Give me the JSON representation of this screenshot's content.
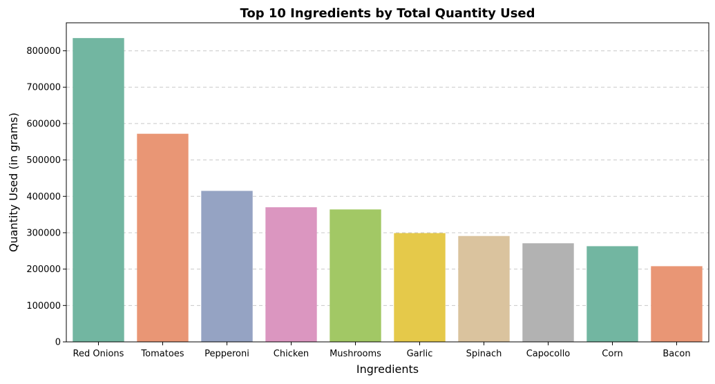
{
  "chart_data": {
    "type": "bar",
    "title": "Top 10 Ingredients by Total Quantity Used",
    "xlabel": "Ingredients",
    "ylabel": "Quantity Used (in grams)",
    "categories": [
      "Red Onions",
      "Tomatoes",
      "Pepperoni",
      "Chicken",
      "Mushrooms",
      "Garlic",
      "Spinach",
      "Capocollo",
      "Corn",
      "Bacon"
    ],
    "values": [
      835000,
      572000,
      415000,
      370000,
      364000,
      299000,
      291000,
      271000,
      263000,
      208000
    ],
    "colors": [
      "#72b6a1",
      "#e99675",
      "#95a3c3",
      "#db96c0",
      "#a2c865",
      "#e5c94a",
      "#dac39e",
      "#b2b2b2",
      "#72b6a1",
      "#e99675"
    ],
    "ylim": [
      0,
      877000
    ],
    "yticks": [
      0,
      100000,
      200000,
      300000,
      400000,
      500000,
      600000,
      700000,
      800000
    ],
    "ytick_labels": [
      "0",
      "100000",
      "200000",
      "300000",
      "400000",
      "500000",
      "600000",
      "700000",
      "800000"
    ],
    "grid": {
      "axis": "y",
      "style": "dashed",
      "color": "#c8c8c8"
    },
    "legend": "none"
  }
}
